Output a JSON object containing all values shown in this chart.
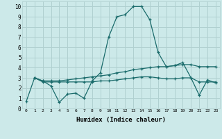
{
  "title": "",
  "xlabel": "Humidex (Indice chaleur)",
  "ylabel": "",
  "background_color": "#cce9e9",
  "grid_color": "#b0d0d0",
  "line_color": "#1a6b6b",
  "xlim": [
    -0.5,
    23.5
  ],
  "ylim": [
    0,
    10.5
  ],
  "x_ticks": [
    0,
    1,
    2,
    3,
    4,
    5,
    6,
    7,
    8,
    9,
    10,
    11,
    12,
    13,
    14,
    15,
    16,
    17,
    18,
    19,
    20,
    21,
    22,
    23
  ],
  "y_ticks": [
    0,
    1,
    2,
    3,
    4,
    5,
    6,
    7,
    8,
    9,
    10
  ],
  "series": [
    {
      "x": [
        0,
        1,
        2,
        3,
        4,
        5,
        6,
        7,
        8,
        9,
        10,
        11,
        12,
        13,
        14,
        15,
        16,
        17,
        18,
        19,
        20,
        21,
        22,
        23
      ],
      "y": [
        0.7,
        3.0,
        2.7,
        2.2,
        0.6,
        1.4,
        1.5,
        1.0,
        2.7,
        3.5,
        7.0,
        9.0,
        9.2,
        10.0,
        10.0,
        8.7,
        5.5,
        4.1,
        4.2,
        4.5,
        3.0,
        1.3,
        2.8,
        2.5
      ]
    },
    {
      "x": [
        1,
        2,
        3,
        4,
        5,
        6,
        7,
        8,
        9,
        10,
        11,
        12,
        13,
        14,
        15,
        16,
        17,
        18,
        19,
        20,
        21,
        22,
        23
      ],
      "y": [
        3.0,
        2.6,
        2.6,
        2.6,
        2.6,
        2.6,
        2.6,
        2.6,
        2.7,
        2.7,
        2.8,
        2.9,
        3.0,
        3.1,
        3.1,
        3.0,
        2.9,
        2.9,
        3.0,
        3.0,
        2.6,
        2.6,
        2.6
      ]
    },
    {
      "x": [
        1,
        2,
        3,
        4,
        5,
        6,
        7,
        8,
        9,
        10,
        11,
        12,
        13,
        14,
        15,
        16,
        17,
        18,
        19,
        20,
        21,
        22,
        23
      ],
      "y": [
        3.0,
        2.7,
        2.7,
        2.7,
        2.8,
        2.9,
        3.0,
        3.1,
        3.2,
        3.3,
        3.5,
        3.6,
        3.8,
        3.9,
        4.0,
        4.1,
        4.1,
        4.2,
        4.3,
        4.3,
        4.1,
        4.1,
        4.1
      ]
    }
  ]
}
